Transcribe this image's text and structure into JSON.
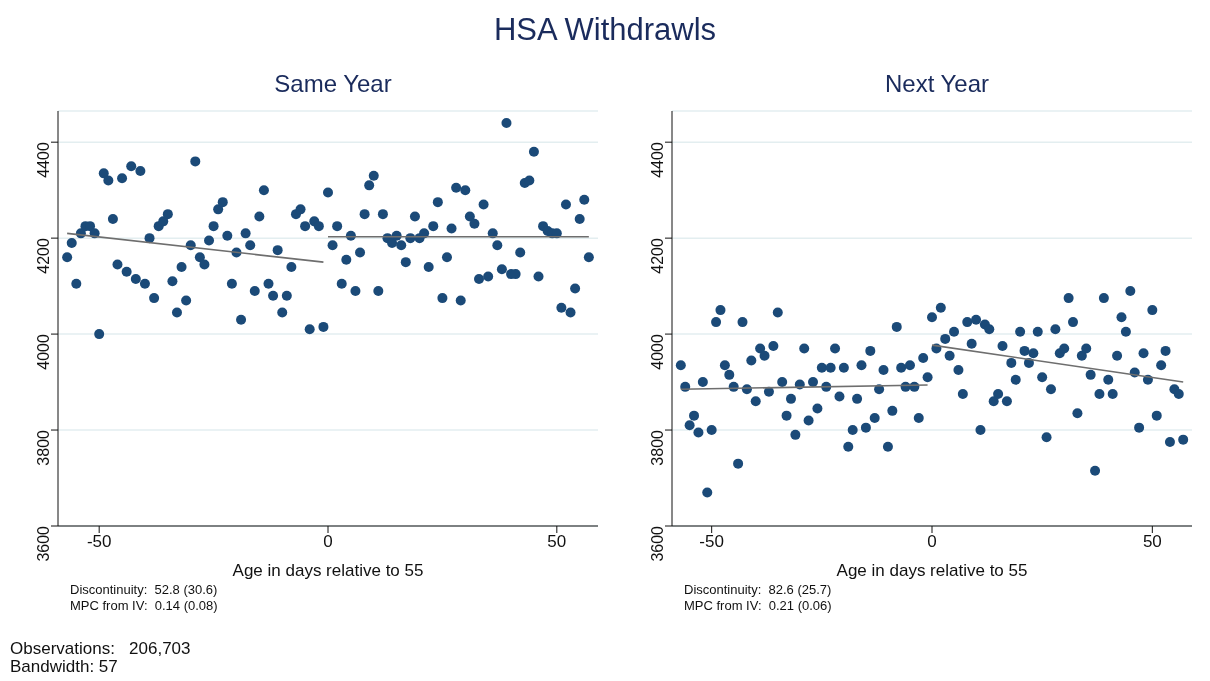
{
  "chart_data": [
    {
      "type": "scatter",
      "title": "Same Year",
      "xlabel": "Age in days relative to 55",
      "marker": "circle",
      "grid": "y",
      "annotations": [
        "HSA Withdrawls",
        "Discontinuity:  52.8 (30.6)",
        "MPC from IV:  0.14 (0.08)",
        "Observations:   206,703",
        "Bandwidth: 57"
      ],
      "xlim": [
        -59,
        59
      ],
      "xticks": [
        -50,
        0,
        50
      ],
      "ylim": [
        3600,
        4465
      ],
      "yticks": [
        3600,
        3800,
        4000,
        4200,
        4400
      ],
      "x": [
        -57,
        -56,
        -55,
        -54,
        -53,
        -52,
        -51,
        -50,
        -49,
        -48,
        -47,
        -46,
        -45,
        -44,
        -43,
        -42,
        -41,
        -40,
        -39,
        -38,
        -37,
        -36,
        -35,
        -34,
        -33,
        -32,
        -31,
        -30,
        -29,
        -28,
        -27,
        -26,
        -25,
        -24,
        -23,
        -22,
        -21,
        -20,
        -19,
        -18,
        -17,
        -16,
        -15,
        -14,
        -13,
        -12,
        -11,
        -10,
        -9,
        -8,
        -7,
        -6,
        -5,
        -4,
        -3,
        -2,
        -1,
        0,
        1,
        2,
        3,
        4,
        5,
        6,
        7,
        8,
        9,
        10,
        11,
        12,
        13,
        14,
        15,
        16,
        17,
        18,
        19,
        20,
        21,
        22,
        23,
        24,
        25,
        26,
        27,
        28,
        29,
        30,
        31,
        32,
        33,
        34,
        35,
        36,
        37,
        38,
        39,
        40,
        41,
        42,
        43,
        44,
        45,
        46,
        47,
        48,
        49,
        50,
        51,
        52,
        53,
        54,
        55,
        56,
        57
      ],
      "series": [
        {
          "color": "#1b4a78",
          "values": [
            4160,
            4190,
            4105,
            4210,
            4225,
            4225,
            4210,
            4000,
            4335,
            4320,
            4240,
            4145,
            4325,
            4130,
            4350,
            4115,
            4340,
            4105,
            4200,
            4075,
            4225,
            4235,
            4250,
            4110,
            4045,
            4140,
            4070,
            4185,
            4360,
            4160,
            4145,
            4195,
            4225,
            4260,
            4275,
            4205,
            4105,
            4170,
            4030,
            4210,
            4185,
            4090,
            4245,
            4300,
            4105,
            4080,
            4175,
            4045,
            4080,
            4140,
            4250,
            4260,
            4225,
            4010,
            4235,
            4225,
            4015,
            4295,
            4185,
            4225,
            4105,
            4155,
            4205,
            4090,
            4170,
            4250,
            4310,
            4330,
            4090,
            4250,
            4200,
            4190,
            4205,
            4185,
            4150,
            4200,
            4245,
            4200,
            4210,
            4140,
            4225,
            4275,
            4075,
            4160,
            4220,
            4305,
            4070,
            4300,
            4245,
            4230,
            4115,
            4270,
            4120,
            4210,
            4185,
            4135,
            4440,
            4125,
            4125,
            4170,
            4315,
            4320,
            4380,
            4120,
            4225,
            4215,
            4210,
            4210,
            4055,
            4270,
            4045,
            4095,
            4240,
            4280,
            4160
          ]
        },
        {
          "type": "line",
          "marker": "none",
          "color": "#6e6e6e",
          "x": [
            -57,
            -1
          ],
          "values": [
            4210,
            4150
          ]
        },
        {
          "type": "line",
          "marker": "none",
          "color": "#6e6e6e",
          "x": [
            0,
            57
          ],
          "values": [
            4203,
            4203
          ]
        }
      ]
    },
    {
      "type": "scatter",
      "title": "Next Year",
      "xlabel": "Age in days relative to 55",
      "marker": "circle",
      "grid": "y",
      "annotations": [
        "Discontinuity:  82.6 (25.7)",
        "MPC from IV:  0.21 (0.06)"
      ],
      "xlim": [
        -59,
        59
      ],
      "xticks": [
        -50,
        0,
        50
      ],
      "ylim": [
        3600,
        4465
      ],
      "yticks": [
        3600,
        3800,
        4000,
        4200,
        4400
      ],
      "x": [
        -57,
        -56,
        -55,
        -54,
        -53,
        -52,
        -51,
        -50,
        -49,
        -48,
        -47,
        -46,
        -45,
        -44,
        -43,
        -42,
        -41,
        -40,
        -39,
        -38,
        -37,
        -36,
        -35,
        -34,
        -33,
        -32,
        -31,
        -30,
        -29,
        -28,
        -27,
        -26,
        -25,
        -24,
        -23,
        -22,
        -21,
        -20,
        -19,
        -18,
        -17,
        -16,
        -15,
        -14,
        -13,
        -12,
        -11,
        -10,
        -9,
        -8,
        -7,
        -6,
        -5,
        -4,
        -3,
        -2,
        -1,
        0,
        1,
        2,
        3,
        4,
        5,
        6,
        7,
        8,
        9,
        10,
        11,
        12,
        13,
        14,
        15,
        16,
        17,
        18,
        19,
        20,
        21,
        22,
        23,
        24,
        25,
        26,
        27,
        28,
        29,
        30,
        31,
        32,
        33,
        34,
        35,
        36,
        37,
        38,
        39,
        40,
        41,
        42,
        43,
        44,
        45,
        46,
        47,
        48,
        49,
        50,
        51,
        52,
        53,
        54,
        55,
        56,
        57
      ],
      "series": [
        {
          "color": "#1b4a78",
          "values": [
            3935,
            3890,
            3810,
            3830,
            3795,
            3900,
            3670,
            3800,
            4025,
            4050,
            3935,
            3915,
            3890,
            3730,
            4025,
            3885,
            3945,
            3860,
            3970,
            3955,
            3880,
            3975,
            4045,
            3900,
            3830,
            3865,
            3790,
            3895,
            3970,
            3820,
            3900,
            3845,
            3930,
            3890,
            3930,
            3970,
            3870,
            3930,
            3765,
            3800,
            3865,
            3935,
            3805,
            3965,
            3825,
            3885,
            3925,
            3765,
            3840,
            4015,
            3930,
            3890,
            3935,
            3890,
            3825,
            3950,
            3910,
            4035,
            3970,
            4055,
            3990,
            3955,
            4005,
            3925,
            3875,
            4025,
            3980,
            4030,
            3800,
            4020,
            4010,
            3860,
            3875,
            3975,
            3860,
            3940,
            3905,
            4005,
            3965,
            3940,
            3960,
            4005,
            3910,
            3785,
            3885,
            4010,
            3960,
            3970,
            4075,
            4025,
            3835,
            3955,
            3970,
            3915,
            3715,
            3875,
            4075,
            3905,
            3875,
            3955,
            4035,
            4005,
            4090,
            3920,
            3805,
            3960,
            3905,
            4050,
            3830,
            3935,
            3965,
            3775,
            3885,
            3875,
            3780
          ]
        },
        {
          "type": "line",
          "marker": "none",
          "color": "#6e6e6e",
          "x": [
            -57,
            -1
          ],
          "values": [
            3885,
            3894
          ]
        },
        {
          "type": "line",
          "marker": "none",
          "color": "#6e6e6e",
          "x": [
            0,
            57
          ],
          "values": [
            3977,
            3900
          ]
        }
      ]
    }
  ]
}
